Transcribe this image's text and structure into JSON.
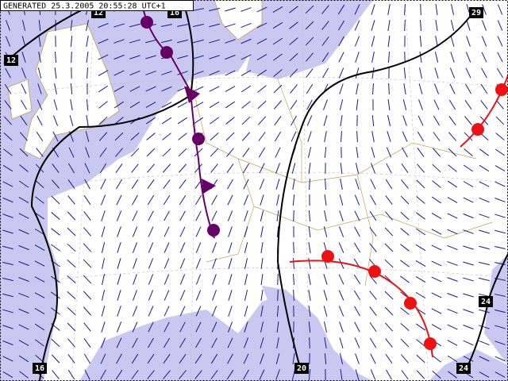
{
  "header": {
    "title": "GENERATED 25.3.2005 20:55:28 UTC+1"
  },
  "isolines": [
    {
      "label": "12"
    },
    {
      "label": "16"
    },
    {
      "label": "29"
    },
    {
      "label": "12"
    },
    {
      "label": "24"
    },
    {
      "label": "16"
    },
    {
      "label": "20"
    },
    {
      "label": "24"
    }
  ]
}
